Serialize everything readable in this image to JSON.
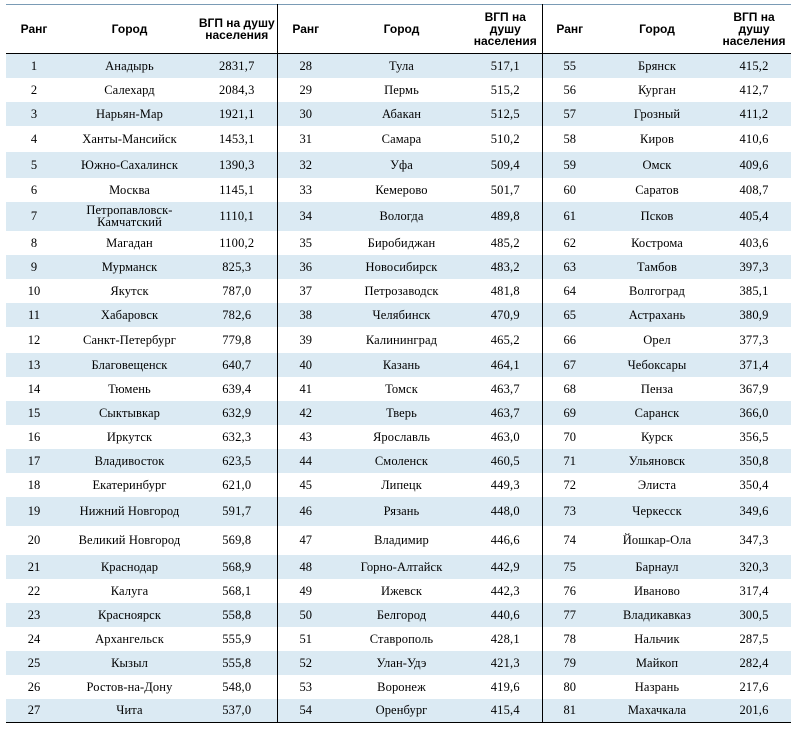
{
  "headers": {
    "rank": "Ранг",
    "city": "Город",
    "gdp": "ВГП на душу населения"
  },
  "rows": [
    [
      {
        "r": "1",
        "c": "Анадырь",
        "v": "2831,7"
      },
      {
        "r": "28",
        "c": "Тула",
        "v": "517,1"
      },
      {
        "r": "55",
        "c": "Брянск",
        "v": "415,2"
      }
    ],
    [
      {
        "r": "2",
        "c": "Салехард",
        "v": "2084,3"
      },
      {
        "r": "29",
        "c": "Пермь",
        "v": "515,2"
      },
      {
        "r": "56",
        "c": "Курган",
        "v": "412,7"
      }
    ],
    [
      {
        "r": "3",
        "c": "Нарьян-Мар",
        "v": "1921,1"
      },
      {
        "r": "30",
        "c": "Абакан",
        "v": "512,5"
      },
      {
        "r": "57",
        "c": "Грозный",
        "v": "411,2"
      }
    ],
    [
      {
        "r": "4",
        "c": "Ханты-Мансийск",
        "v": "1453,1"
      },
      {
        "r": "31",
        "c": "Самара",
        "v": "510,2"
      },
      {
        "r": "58",
        "c": "Киров",
        "v": "410,6"
      }
    ],
    [
      {
        "r": "5",
        "c": "Южно-Сахалинск",
        "v": "1390,3"
      },
      {
        "r": "32",
        "c": "Уфа",
        "v": "509,4"
      },
      {
        "r": "59",
        "c": "Омск",
        "v": "409,6"
      }
    ],
    [
      {
        "r": "6",
        "c": "Москва",
        "v": "1145,1"
      },
      {
        "r": "33",
        "c": "Кемерово",
        "v": "501,7"
      },
      {
        "r": "60",
        "c": "Саратов",
        "v": "408,7"
      }
    ],
    [
      {
        "r": "7",
        "c": "Петропавловск-Камчатский",
        "v": "1110,1"
      },
      {
        "r": "34",
        "c": "Вологда",
        "v": "489,8"
      },
      {
        "r": "61",
        "c": "Псков",
        "v": "405,4"
      }
    ],
    [
      {
        "r": "8",
        "c": "Магадан",
        "v": "1100,2"
      },
      {
        "r": "35",
        "c": "Биробиджан",
        "v": "485,2"
      },
      {
        "r": "62",
        "c": "Кострома",
        "v": "403,6"
      }
    ],
    [
      {
        "r": "9",
        "c": "Мурманск",
        "v": "825,3"
      },
      {
        "r": "36",
        "c": "Новосибирск",
        "v": "483,2"
      },
      {
        "r": "63",
        "c": "Тамбов",
        "v": "397,3"
      }
    ],
    [
      {
        "r": "10",
        "c": "Якутск",
        "v": "787,0"
      },
      {
        "r": "37",
        "c": "Петрозаводск",
        "v": "481,8"
      },
      {
        "r": "64",
        "c": "Волгоград",
        "v": "385,1"
      }
    ],
    [
      {
        "r": "11",
        "c": "Хабаровск",
        "v": "782,6"
      },
      {
        "r": "38",
        "c": "Челябинск",
        "v": "470,9"
      },
      {
        "r": "65",
        "c": "Астрахань",
        "v": "380,9"
      }
    ],
    [
      {
        "r": "12",
        "c": "Санкт-Петербург",
        "v": "779,8"
      },
      {
        "r": "39",
        "c": "Калининград",
        "v": "465,2"
      },
      {
        "r": "66",
        "c": "Орел",
        "v": "377,3"
      }
    ],
    [
      {
        "r": "13",
        "c": "Благовещенск",
        "v": "640,7"
      },
      {
        "r": "40",
        "c": "Казань",
        "v": "464,1"
      },
      {
        "r": "67",
        "c": "Чебоксары",
        "v": "371,4"
      }
    ],
    [
      {
        "r": "14",
        "c": "Тюмень",
        "v": "639,4"
      },
      {
        "r": "41",
        "c": "Томск",
        "v": "463,7"
      },
      {
        "r": "68",
        "c": "Пенза",
        "v": "367,9"
      }
    ],
    [
      {
        "r": "15",
        "c": "Сыктывкар",
        "v": "632,9"
      },
      {
        "r": "42",
        "c": "Тверь",
        "v": "463,7"
      },
      {
        "r": "69",
        "c": "Саранск",
        "v": "366,0"
      }
    ],
    [
      {
        "r": "16",
        "c": "Иркутск",
        "v": "632,3"
      },
      {
        "r": "43",
        "c": "Ярославль",
        "v": "463,0"
      },
      {
        "r": "70",
        "c": "Курск",
        "v": "356,5"
      }
    ],
    [
      {
        "r": "17",
        "c": "Владивосток",
        "v": "623,5"
      },
      {
        "r": "44",
        "c": "Смоленск",
        "v": "460,5"
      },
      {
        "r": "71",
        "c": "Ульяновск",
        "v": "350,8"
      }
    ],
    [
      {
        "r": "18",
        "c": "Екатеринбург",
        "v": "621,0"
      },
      {
        "r": "45",
        "c": "Липецк",
        "v": "449,3"
      },
      {
        "r": "72",
        "c": "Элиста",
        "v": "350,4"
      }
    ],
    [
      {
        "r": "19",
        "c": "Нижний Новгород",
        "v": "591,7"
      },
      {
        "r": "46",
        "c": "Рязань",
        "v": "448,0"
      },
      {
        "r": "73",
        "c": "Черкесск",
        "v": "349,6"
      }
    ],
    [
      {
        "r": "20",
        "c": "Великий Новгород",
        "v": "569,8"
      },
      {
        "r": "47",
        "c": "Владимир",
        "v": "446,6"
      },
      {
        "r": "74",
        "c": "Йошкар-Ола",
        "v": "347,3"
      }
    ],
    [
      {
        "r": "21",
        "c": "Краснодар",
        "v": "568,9"
      },
      {
        "r": "48",
        "c": "Горно-Алтайск",
        "v": "442,9"
      },
      {
        "r": "75",
        "c": "Барнаул",
        "v": "320,3"
      }
    ],
    [
      {
        "r": "22",
        "c": "Калуга",
        "v": "568,1"
      },
      {
        "r": "49",
        "c": "Ижевск",
        "v": "442,3"
      },
      {
        "r": "76",
        "c": "Иваново",
        "v": "317,4"
      }
    ],
    [
      {
        "r": "23",
        "c": "Красноярск",
        "v": "558,8"
      },
      {
        "r": "50",
        "c": "Белгород",
        "v": "440,6"
      },
      {
        "r": "77",
        "c": "Владикавказ",
        "v": "300,5"
      }
    ],
    [
      {
        "r": "24",
        "c": "Архангельск",
        "v": "555,9"
      },
      {
        "r": "51",
        "c": "Ставрополь",
        "v": "428,1"
      },
      {
        "r": "78",
        "c": "Нальчик",
        "v": "287,5"
      }
    ],
    [
      {
        "r": "25",
        "c": "Кызыл",
        "v": "555,8"
      },
      {
        "r": "52",
        "c": "Улан-Удэ",
        "v": "421,3"
      },
      {
        "r": "79",
        "c": "Майкоп",
        "v": "282,4"
      }
    ],
    [
      {
        "r": "26",
        "c": "Ростов-на-Дону",
        "v": "548,0"
      },
      {
        "r": "53",
        "c": "Воронеж",
        "v": "419,6"
      },
      {
        "r": "80",
        "c": "Назрань",
        "v": "217,6"
      }
    ],
    [
      {
        "r": "27",
        "c": "Чита",
        "v": "537,0"
      },
      {
        "r": "54",
        "c": "Оренбург",
        "v": "415,4"
      },
      {
        "r": "81",
        "c": "Махачкала",
        "v": "201,6"
      }
    ]
  ]
}
